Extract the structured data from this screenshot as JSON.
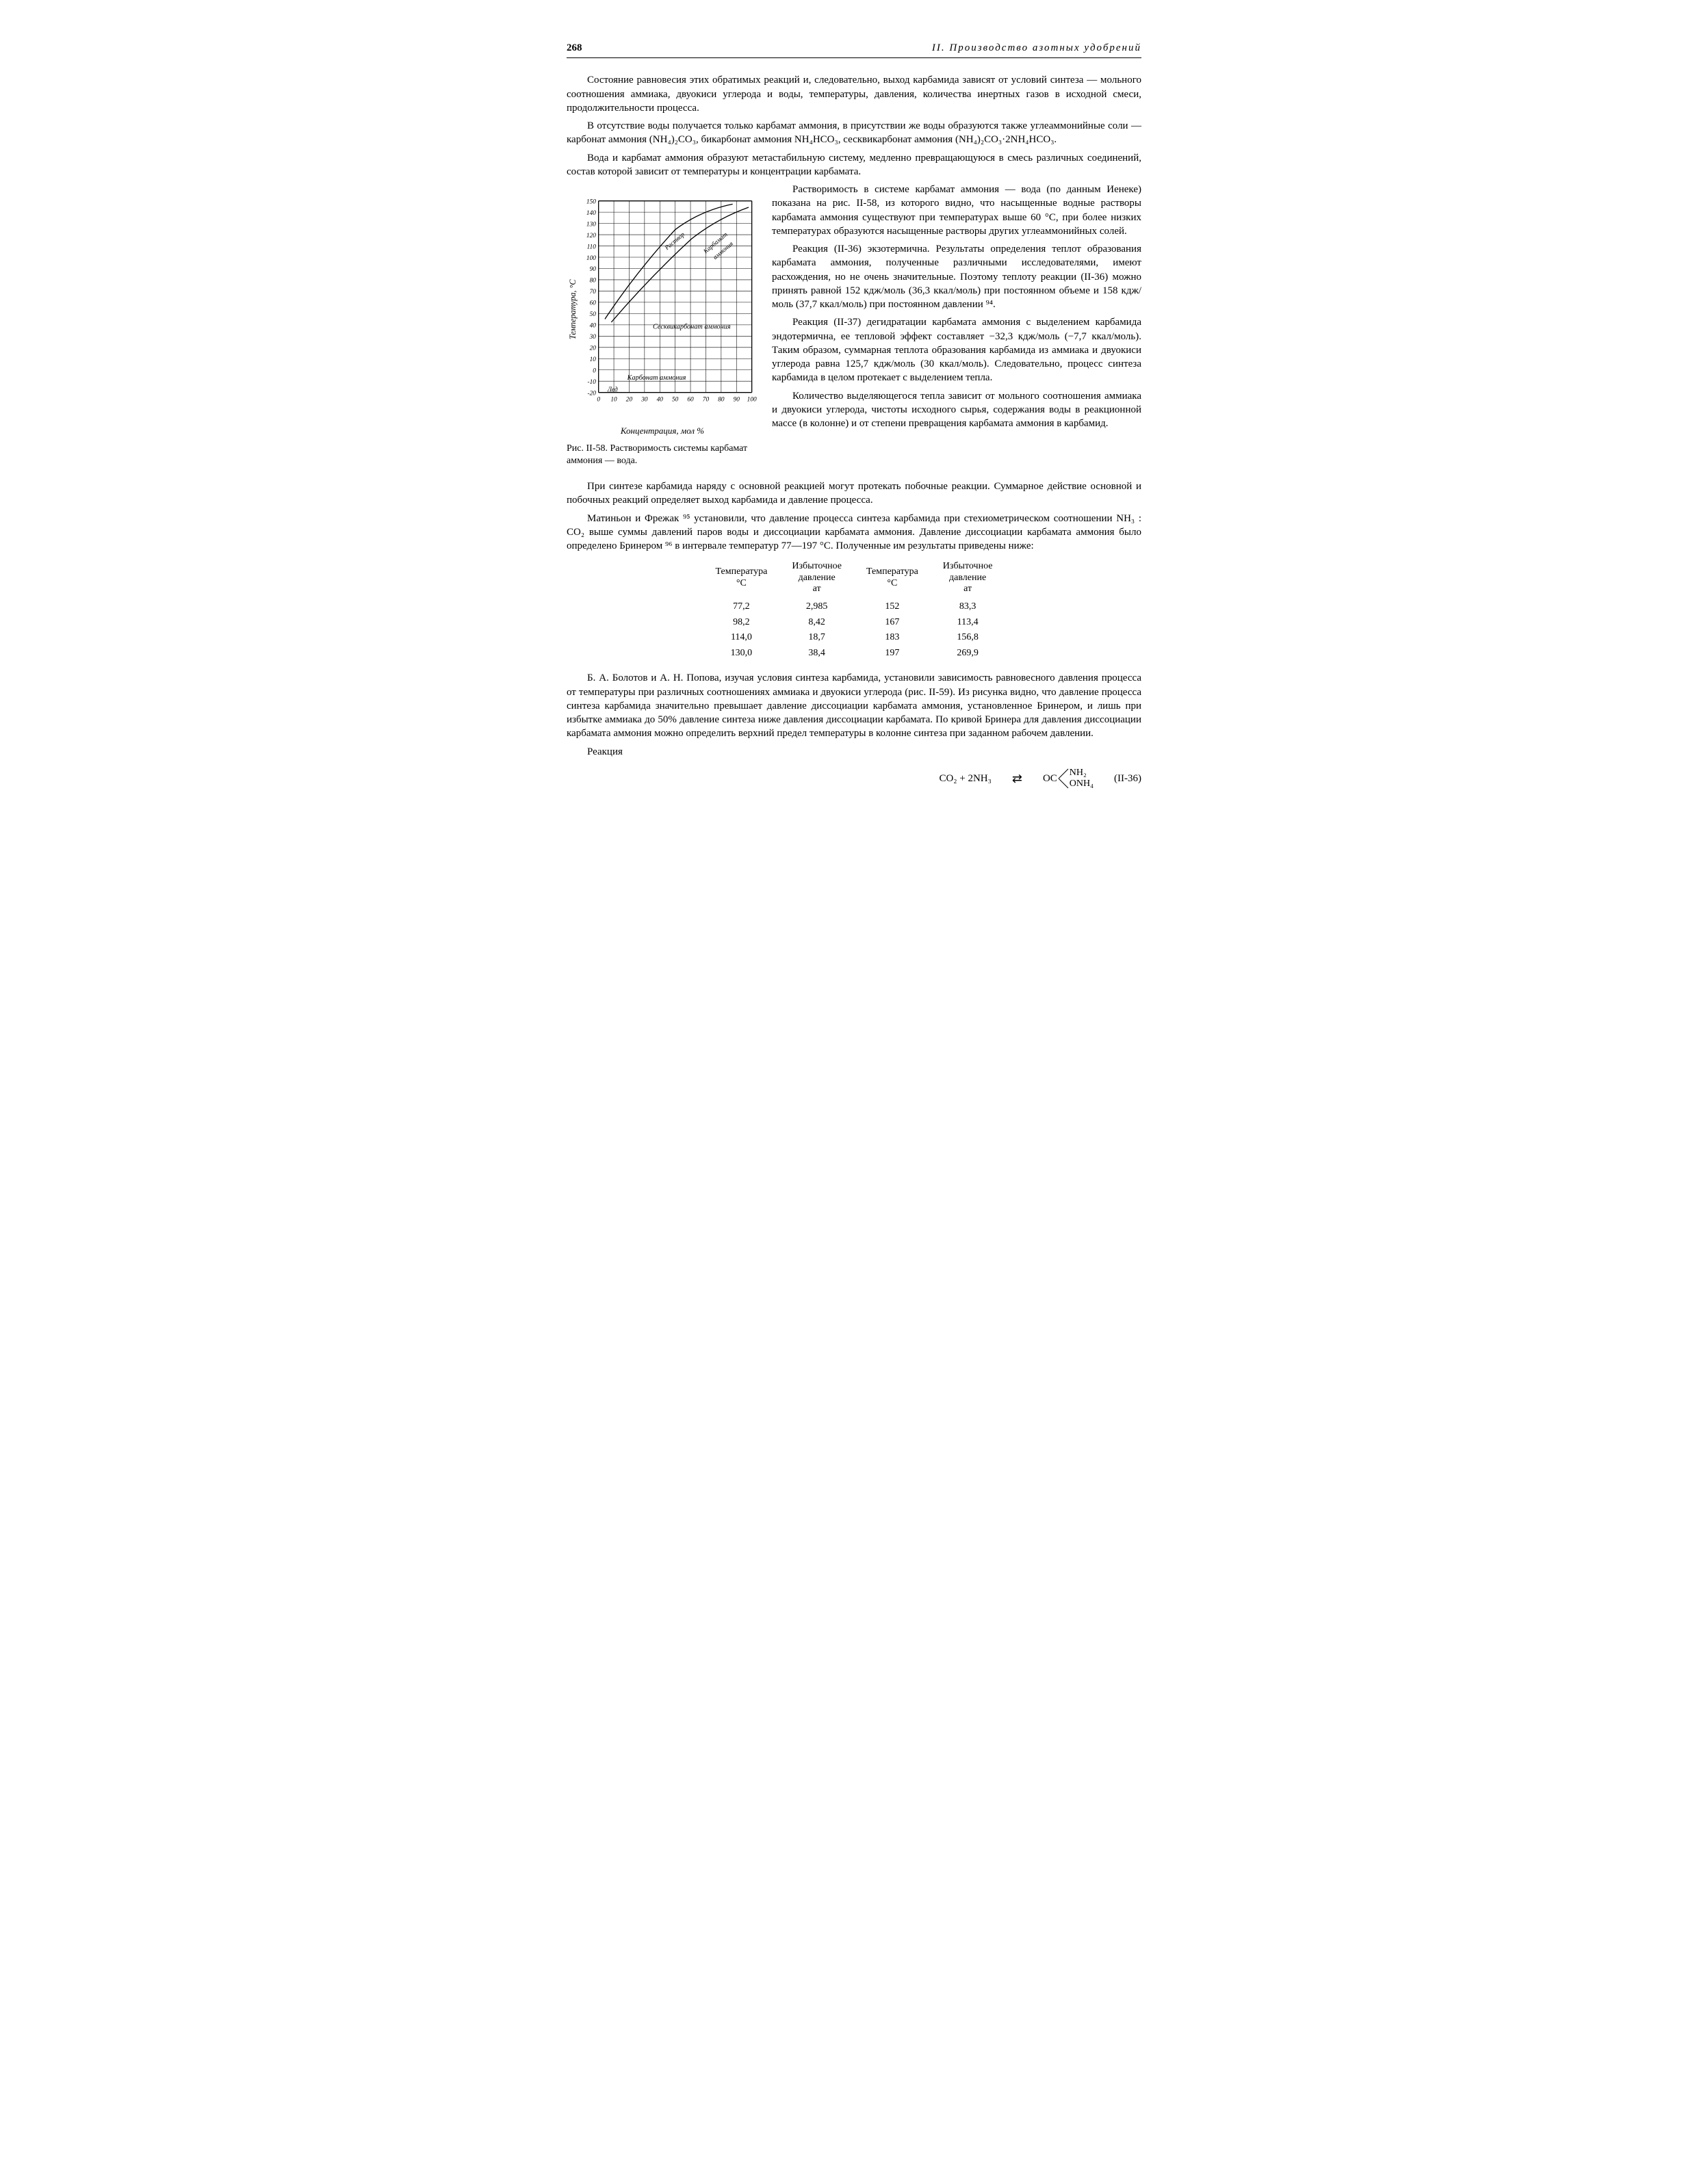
{
  "page_number": "268",
  "section_title": "II. Производство азотных удобрений",
  "paragraphs": {
    "p1": "Состояние равновесия этих обратимых реакций и, следовательно, выход карбамида зависят от условий синтеза — мольного соотношения аммиака, двуокиси углерода и воды, температуры, давления, количества инертных газов в исходной смеси, продолжительности процесса.",
    "p2": "В отсутствие воды получается только карбамат аммония, в присутствии же воды образуются также углеаммонийные соли — карбонат аммония (NH₄)₂CO₃, бикарбонат аммония NH₄HCO₃, сесквикарбонат аммония (NH₄)₂CO₃·2NH₄HCO₃.",
    "p3": "Вода и карбамат аммония образуют метастабильную систему, медленно превращающуюся в смесь различных соединений, состав которой зависит от температуры и концентрации карбамата.",
    "p4": "Растворимость в системе карбамат аммония — вода (по данным Иенеке) показана на рис. II-58, из которого видно, что насыщенные водные растворы карбамата аммония существуют при температурах выше 60 °С, при более низких температурах образуются насыщенные растворы других углеаммонийных солей.",
    "p5": "Реакция (II-36) экзотермична. Результаты определения теплот образования карбамата аммония, полученные различными исследователями, имеют расхождения, но не очень значительные. Поэтому теплоту реакции (II-36) можно принять равной 152 кдж/моль (36,3 ккал/моль) при постоянном объеме и 158 кдж/моль (37,7 ккал/моль) при постоянном давлении ⁹⁴.",
    "p6": "Реакция (II-37) дегидратации карбамата аммония с выделением карбамида эндотермична, ее тепловой эффект составляет −32,3 кдж/моль (−7,7 ккал/моль). Таким образом, суммарная теплота образования карбамида из аммиака и двуокиси углерода равна 125,7 кдж/моль (30 ккал/моль). Следовательно, процесс синтеза карбамида в целом протекает с выделением тепла.",
    "p7": "Количество выделяющегося тепла зависит от мольного соотношения аммиака и двуокиси углерода, чистоты исходного сырья, содержания воды в реакционной массе (в колонне) и от степени превращения карбамата аммония в карбамид.",
    "p8": "При синтезе карбамида наряду с основной реакцией могут протекать побочные реакции. Суммарное действие основной и побочных реакций определяет выход карбамида и давление процесса.",
    "p9": "Матиньон и Фрежак ⁹⁵ установили, что давление процесса синтеза карбамида при стехиометрическом соотношении NH₃ : CO₂ выше суммы давлений паров воды и диссоциации карбамата аммония. Давление диссоциации карбамата аммония было определено Бринером ⁹⁶ в интервале температур 77—197 °С. Полученные им результаты приведены ниже:",
    "p10": "Б. А. Болотов и А. Н. Попова, изучая условия синтеза карбамида, установили зависимость равновесного давления процесса от температуры при различных соотношениях аммиака и двуокиси углерода (рис. II-59). Из рисунка видно, что давление процесса синтеза карбамида значительно превышает давление диссоциации карбамата аммония, установленное Бринером, и лишь при избытке аммиака до 50% давление синтеза ниже давления диссоциации карбамата. По кривой Бринера для давления диссоциации карбамата аммония можно определить верхний предел температуры в колонне синтеза при заданном рабочем давлении.",
    "p11": "Реакция"
  },
  "figure": {
    "caption_lead": "Рис. II-58.",
    "caption_rest": "Растворимость системы карбамат аммония — вода.",
    "y_axis_label": "Температура, °С",
    "x_axis_label": "Концентрация, мол %",
    "y_ticks": [
      "-20",
      "-10",
      "0",
      "10",
      "20",
      "30",
      "40",
      "50",
      "60",
      "70",
      "80",
      "90",
      "100",
      "110",
      "120",
      "130",
      "140",
      "150"
    ],
    "x_ticks": [
      "0",
      "10",
      "20",
      "30",
      "40",
      "50",
      "60",
      "70",
      "80",
      "90",
      "100"
    ],
    "labels": {
      "sesqui": "Сесквикарбонат аммония",
      "carbonate": "Карбонат аммония",
      "rastvor": "Раствор",
      "carbamate": "Карбамат аммония",
      "led": "Лед"
    },
    "style": {
      "grid_color": "#000000",
      "line_color": "#000000",
      "font_size_ticks": 10,
      "font_size_labels": 11,
      "line_width": 1
    }
  },
  "table": {
    "headers": [
      "Температура\n°С",
      "Избыточное\nдавление\nат",
      "Температура\n°С",
      "Избыточное\nдавление\nат"
    ],
    "rows": [
      [
        "77,2",
        "2,985",
        "152",
        "83,3"
      ],
      [
        "98,2",
        "8,42",
        "167",
        "113,4"
      ],
      [
        "114,0",
        "18,7",
        "183",
        "156,8"
      ],
      [
        "130,0",
        "38,4",
        "197",
        "269,9"
      ]
    ]
  },
  "equation": {
    "lhs": "CO₂ + 2NH₃",
    "arrows": "⇄",
    "rhs_prefix": "OC",
    "rhs_top": "NH₂",
    "rhs_bot": "ONH₄",
    "number": "(II-36)"
  }
}
